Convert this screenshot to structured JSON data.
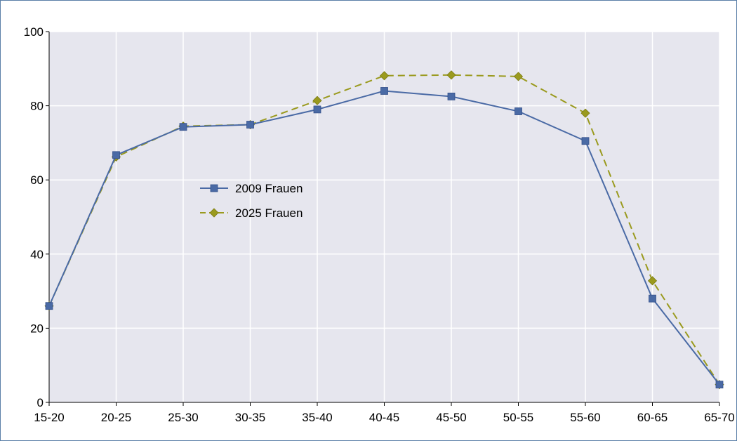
{
  "chart_data": {
    "type": "line",
    "categories": [
      "15-20",
      "20-25",
      "25-30",
      "30-35",
      "35-40",
      "40-45",
      "45-50",
      "50-55",
      "55-60",
      "60-65",
      "65-70"
    ],
    "ylim": [
      0,
      100
    ],
    "yticks": [
      0,
      20,
      40,
      60,
      80,
      100
    ],
    "grid": true,
    "legend": "center-left",
    "series": [
      {
        "name": "2009 Frauen",
        "color": "#4a6aa5",
        "marker": "square",
        "dash": "solid",
        "values": [
          26,
          66.7,
          74.3,
          74.9,
          79,
          84,
          82.5,
          78.5,
          70.5,
          28,
          4.8
        ]
      },
      {
        "name": "2025 Frauen",
        "color": "#9a9a1e",
        "marker": "diamond",
        "dash": "dashed",
        "values": [
          26,
          66.2,
          74.5,
          74.9,
          81.4,
          88.1,
          88.3,
          87.9,
          78,
          32.8,
          4.8
        ]
      }
    ],
    "plot_background": "#e6e6ee",
    "grid_color": "#ffffff"
  }
}
